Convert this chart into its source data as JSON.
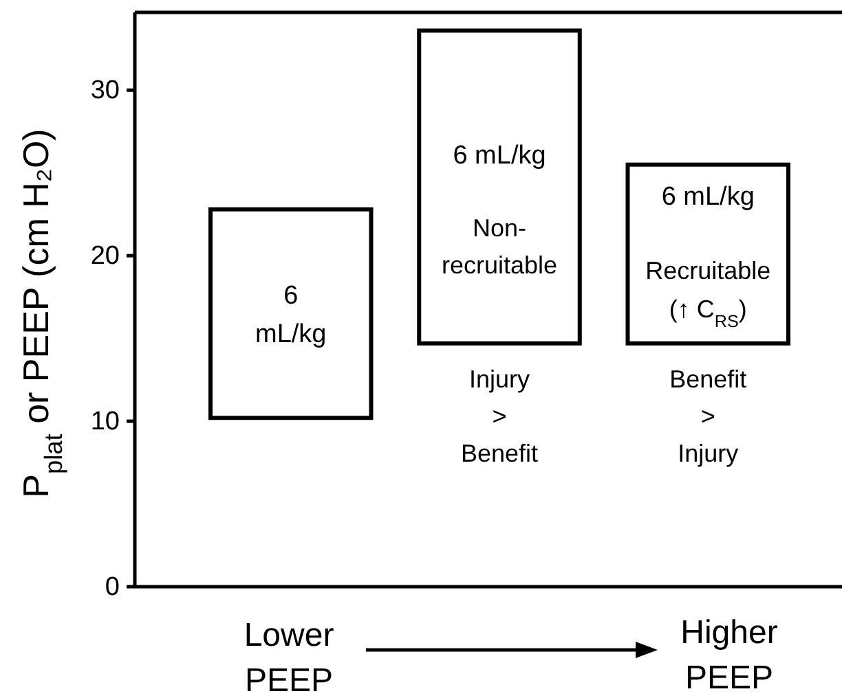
{
  "chart_data": {
    "type": "bar",
    "categories": [
      null,
      null,
      null
    ],
    "base": [
      10.2,
      14.7,
      14.7
    ],
    "values": [
      12.6,
      18.9,
      10.8
    ],
    "color": "#000000",
    "ylim": [
      0,
      34.7
    ],
    "yticks": [
      0,
      10,
      20,
      30
    ],
    "tick_labels": "y",
    "ylabel": "P$_{plat}$ or PEEP (cm H₂O)",
    "annotations": [
      "6\nmL/kg",
      "6 mL/kg",
      "Non-\nrecruitable",
      "6 mL/kg",
      "Recruitable\n(↑ C$_{RS}$)",
      "Injury\n>\nBenefit",
      "Benefit\n>\nInjury",
      "Lower\nPEEP",
      "Higher\nPEEP"
    ]
  }
}
